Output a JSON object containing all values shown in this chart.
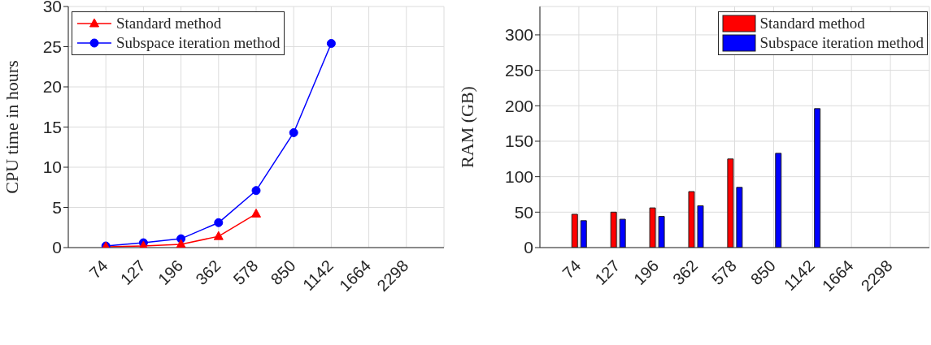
{
  "chart_data": [
    {
      "type": "line",
      "ylabel": "CPU time in hours",
      "categories": [
        "74",
        "127",
        "196",
        "362",
        "578",
        "850",
        "1142",
        "1664",
        "2298"
      ],
      "ylim": [
        0,
        30
      ],
      "yticks": [
        0,
        5,
        10,
        15,
        20,
        25,
        30
      ],
      "grid": true,
      "legend": "top left",
      "series": [
        {
          "name": "Standard method",
          "color": "#ff0000",
          "marker": "triangle",
          "values": [
            0.1,
            0.2,
            0.4,
            1.4,
            4.2,
            null,
            null,
            null,
            null
          ]
        },
        {
          "name": "Subspace iteration method",
          "color": "#0000ff",
          "marker": "circle",
          "values": [
            0.2,
            0.6,
            1.1,
            3.1,
            7.1,
            14.3,
            25.4,
            null,
            null
          ]
        }
      ]
    },
    {
      "type": "bar",
      "ylabel": "RAM (GB)",
      "categories": [
        "74",
        "127",
        "196",
        "362",
        "578",
        "850",
        "1142",
        "1664",
        "2298"
      ],
      "ylim": [
        0,
        340
      ],
      "yticks": [
        0,
        50,
        100,
        150,
        200,
        250,
        300
      ],
      "grid": true,
      "legend": "top right",
      "series": [
        {
          "name": "Standard method",
          "color": "#ff0000",
          "values": [
            47,
            50,
            56,
            79,
            125,
            0,
            0,
            0,
            0
          ]
        },
        {
          "name": "Subspace iteration method",
          "color": "#0000ff",
          "values": [
            38,
            40,
            44,
            59,
            85,
            133,
            196,
            0,
            0
          ]
        }
      ]
    }
  ]
}
